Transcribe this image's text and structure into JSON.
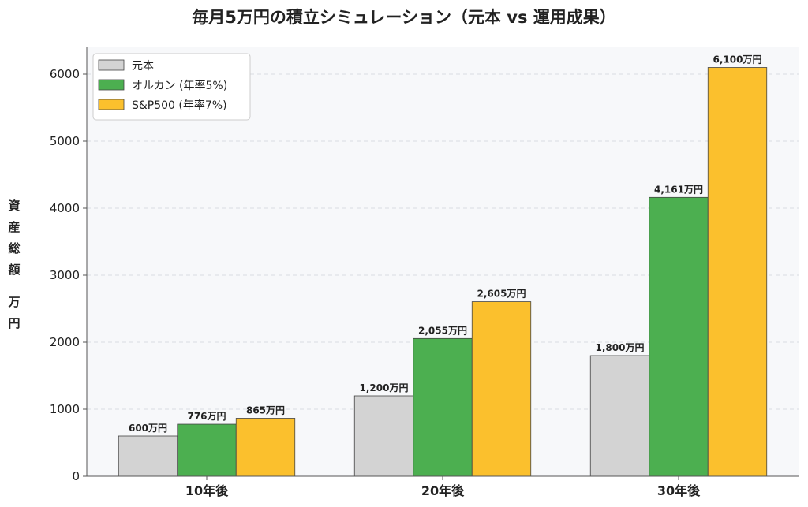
{
  "chart_data": {
    "type": "bar",
    "title": "毎月5万円の積立シミュレーション（元本 vs 運用成果）",
    "ylabel": "資産総額（万円）",
    "xlabel": "",
    "categories": [
      "10年後",
      "20年後",
      "30年後"
    ],
    "series": [
      {
        "name": "元本",
        "values": [
          600,
          1200,
          1800
        ],
        "labels": [
          "600万円",
          "1,200万円",
          "1,800万円"
        ],
        "color": "#d3d3d3"
      },
      {
        "name": "オルカン (年率5%)",
        "values": [
          776,
          2055,
          4161
        ],
        "labels": [
          "776万円",
          "2,055万円",
          "4,161万円"
        ],
        "color": "#4caf50"
      },
      {
        "name": "S&P500 (年率7%)",
        "values": [
          865,
          2605,
          6100
        ],
        "labels": [
          "865万円",
          "2,605万円",
          "6,100万円"
        ],
        "color": "#fbc02d"
      }
    ],
    "ylim": [
      0,
      6400
    ],
    "yticks": [
      0,
      1000,
      2000,
      3000,
      4000,
      5000,
      6000
    ],
    "grid": true,
    "legend": "top-left",
    "plot_background": "#f7f8fa"
  }
}
